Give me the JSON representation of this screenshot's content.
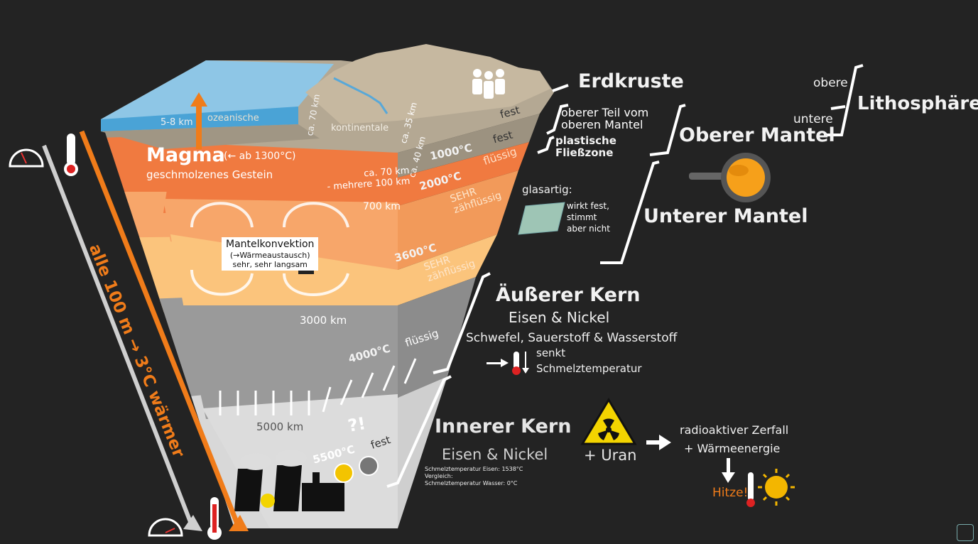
{
  "layers": {
    "crust_oceanic": {
      "label": "ozeanische",
      "thickness": "5-8 km"
    },
    "crust_continental": {
      "label": "kontinentale",
      "depth_1": "ca. 70 km",
      "depth_2": "ca. 35 km",
      "depth_3": "ca. 40 km",
      "state_1": "fest",
      "state_2": "fest"
    },
    "magma": {
      "title": "Magma",
      "temp_note": "(← ab 1300°C)",
      "subtitle": "geschmolzenes Gestein",
      "depth": "ca. 70 km\n- mehrere 100 km",
      "temp": "1000°C",
      "state": "flüssig"
    },
    "upper_mantle_layer": {
      "temp": "2000°C",
      "state": "SEHR\nzähflüssig",
      "depth": "700 km"
    },
    "convection": {
      "title": "Mantelkonvektion",
      "line2": "(→Wärmeaustausch)",
      "line3": "sehr, sehr langsam"
    },
    "lower_mantle_layer": {
      "temp": "3600°C",
      "state": "SEHR\nzähflüssig",
      "depth": "3000 km"
    },
    "outer_core_layer": {
      "temp": "4000°C",
      "state": "flüssig"
    },
    "inner_core_layer": {
      "depth": "5000 km",
      "temp": "5500°C",
      "state": "fest",
      "mystery": "?!",
      "note_1": "Schmelztemperatur Eisen: 1538°C",
      "note_2": "Vergleich:",
      "note_3": "Schmelztemperatur Wasser: 0°C"
    }
  },
  "gradient": {
    "label": "alle 100 m → 3°C wärmer"
  },
  "right_labels": {
    "crust": "Erdkruste",
    "upper_part": "oberer Teil vom\noberen Mantel",
    "plastic_zone": "plastische\nFließzone",
    "upper_mantle": "Oberer Mantel",
    "lower_mantle": "Unterer Mantel",
    "lithosphere": "Lithosphäre",
    "lith_upper": "obere",
    "lith_lower": "untere",
    "glass_title": "glasartig:",
    "glass_note": "wirkt fest,\nstimmt\naber nicht",
    "outer_core": "Äußerer Kern",
    "outer_core_sub": "Eisen & Nickel",
    "outer_core_extra": "Schwefel, Sauerstoff & Wasserstoff",
    "melt_1": "senkt",
    "melt_2": "Schmelztemperatur",
    "inner_core": "Innerer Kern",
    "inner_core_sub": "Eisen & Nickel",
    "uranium": "+ Uran",
    "decay_1": "radioaktiver Zerfall",
    "decay_2": "+ Wärmeenergie",
    "heat": "Hitze!"
  },
  "colors": {
    "background": "#232323",
    "sky": "#8ec6e6",
    "ocean": "#4aa3d6",
    "crust": "#a09684",
    "magma": "#f07a40",
    "upper_mantle": "#f7a66a",
    "lower_mantle": "#fbc47c",
    "outer_core": "#9a9a9a",
    "inner_core": "#d8d8d8",
    "accent_orange": "#f07c1a"
  },
  "icons": [
    "speedometer-icon",
    "thermometer-icon",
    "people-icon",
    "radiation-warning-icon",
    "sun-icon",
    "power-plant-icon",
    "snail-icon",
    "pan-icon",
    "glass-plate-icon",
    "arrow-right-icon"
  ]
}
